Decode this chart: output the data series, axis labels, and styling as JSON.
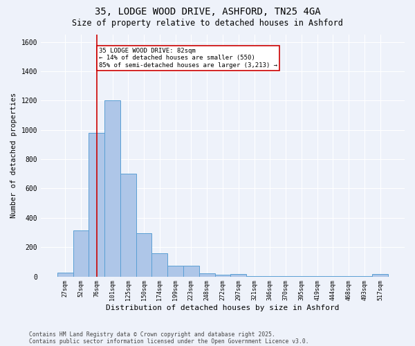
{
  "title_line1": "35, LODGE WOOD DRIVE, ASHFORD, TN25 4GA",
  "title_line2": "Size of property relative to detached houses in Ashford",
  "xlabel": "Distribution of detached houses by size in Ashford",
  "ylabel": "Number of detached properties",
  "bar_labels": [
    "27sqm",
    "52sqm",
    "76sqm",
    "101sqm",
    "125sqm",
    "150sqm",
    "174sqm",
    "199sqm",
    "223sqm",
    "248sqm",
    "272sqm",
    "297sqm",
    "321sqm",
    "346sqm",
    "370sqm",
    "395sqm",
    "419sqm",
    "444sqm",
    "468sqm",
    "493sqm",
    "517sqm"
  ],
  "bar_values": [
    25,
    315,
    980,
    1200,
    700,
    295,
    160,
    75,
    75,
    20,
    10,
    15,
    5,
    5,
    3,
    2,
    2,
    2,
    2,
    2,
    15
  ],
  "bar_color": "#aec6e8",
  "bar_edgecolor": "#5a9fd4",
  "annotation_line1": "35 LODGE WOOD DRIVE: 82sqm",
  "annotation_line2": "← 14% of detached houses are smaller (550)",
  "annotation_line3": "85% of semi-detached houses are larger (3,213) →",
  "vline_color": "#cc0000",
  "annotation_box_edgecolor": "#cc0000",
  "ylim": [
    0,
    1650
  ],
  "yticks": [
    0,
    200,
    400,
    600,
    800,
    1000,
    1200,
    1400,
    1600
  ],
  "background_color": "#eef2fa",
  "plot_bg_color": "#eef2fa",
  "footnote1": "Contains HM Land Registry data © Crown copyright and database right 2025.",
  "footnote2": "Contains public sector information licensed under the Open Government Licence v3.0.",
  "vline_x": 2.0,
  "figsize": [
    6.0,
    5.0
  ],
  "dpi": 100
}
